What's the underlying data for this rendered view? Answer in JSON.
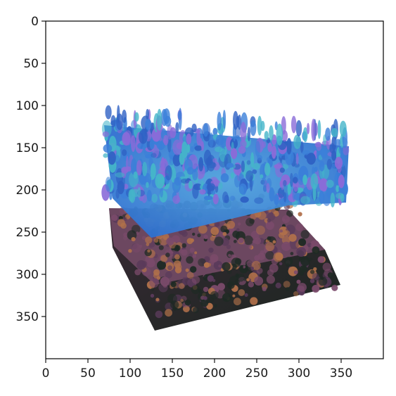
{
  "figure": {
    "type": "image_display",
    "x_axis": {
      "ticks": [
        0,
        50,
        100,
        150,
        200,
        250,
        300,
        350
      ],
      "range": [
        0,
        400
      ]
    },
    "y_axis": {
      "ticks": [
        0,
        50,
        100,
        150,
        200,
        250,
        300,
        350
      ],
      "range": [
        0,
        400
      ],
      "inverted": true
    },
    "image": {
      "content": "3D point-cloud render of two stacked volumetric slabs",
      "top_layer_colors": [
        "#3b7fd9",
        "#45b5c9",
        "#8a6bd8",
        "#2f62c4"
      ],
      "bottom_layer_colors": [
        "#7a4a6a",
        "#b0704a",
        "#5a3a5a",
        "#1e2a24"
      ]
    },
    "axes_color": "#000000",
    "background": "#ffffff"
  }
}
